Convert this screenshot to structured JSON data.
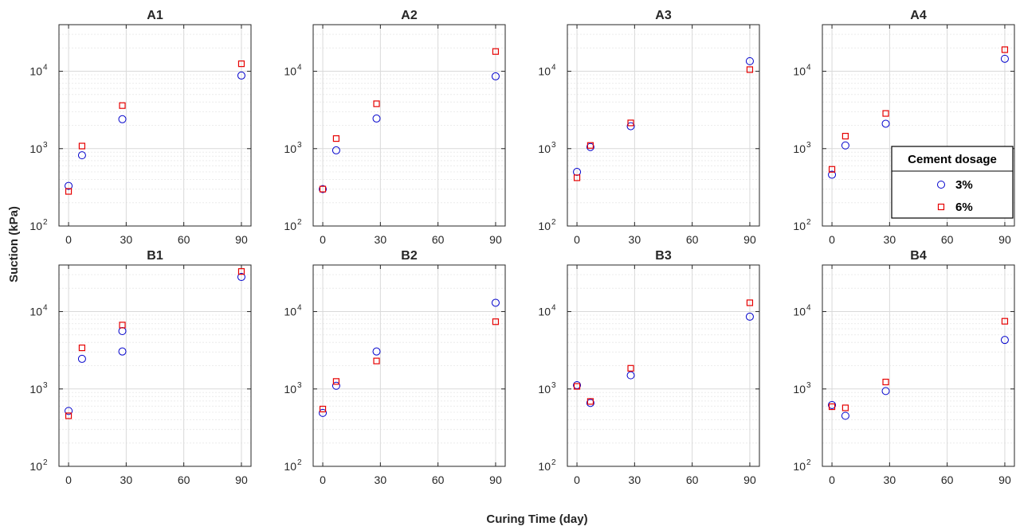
{
  "figure": {
    "xlabel": "Curing Time (day)",
    "ylabel": "Suction (kPa)"
  },
  "legend": {
    "title": "Cement dosage",
    "entries": [
      {
        "label": "3%",
        "marker": "circle",
        "color": "#0000cc"
      },
      {
        "label": "6%",
        "marker": "square",
        "color": "#e60000"
      }
    ],
    "panel": "A4",
    "placement": "lower-right"
  },
  "colors": {
    "series_3pct": "#0000cc",
    "series_6pct": "#e60000",
    "grid": "#d9d9d9",
    "axes": "#262626"
  },
  "chart_data": [
    {
      "type": "scatter",
      "title": "A1",
      "yscale": "log",
      "xlim": [
        -5,
        95
      ],
      "ylim": [
        100,
        40000
      ],
      "xticks": [
        "0",
        "30",
        "60",
        "90"
      ],
      "yticks": [
        "10",
        "10",
        "10"
      ],
      "ytick_exponents": [
        "2",
        "3",
        "4"
      ],
      "grid": true,
      "series": [
        {
          "name": "3%",
          "marker": "circle",
          "points": [
            [
              0,
              330
            ],
            [
              7,
              820
            ],
            [
              28,
              2400
            ],
            [
              90,
              8800
            ]
          ]
        },
        {
          "name": "6%",
          "marker": "square",
          "points": [
            [
              0,
              280
            ],
            [
              7,
              1080
            ],
            [
              28,
              3600
            ],
            [
              90,
              12500
            ]
          ]
        }
      ]
    },
    {
      "type": "scatter",
      "title": "A2",
      "yscale": "log",
      "xlim": [
        -5,
        95
      ],
      "ylim": [
        100,
        40000
      ],
      "xticks": [
        "0",
        "30",
        "60",
        "90"
      ],
      "yticks": [
        "10",
        "10",
        "10"
      ],
      "ytick_exponents": [
        "2",
        "3",
        "4"
      ],
      "grid": true,
      "series": [
        {
          "name": "3%",
          "marker": "circle",
          "points": [
            [
              0,
              300
            ],
            [
              7,
              950
            ],
            [
              28,
              2450
            ],
            [
              90,
              8600
            ]
          ]
        },
        {
          "name": "6%",
          "marker": "square",
          "points": [
            [
              0,
              300
            ],
            [
              7,
              1350
            ],
            [
              28,
              3800
            ],
            [
              90,
              18000
            ]
          ]
        }
      ]
    },
    {
      "type": "scatter",
      "title": "A3",
      "yscale": "log",
      "xlim": [
        -5,
        95
      ],
      "ylim": [
        100,
        40000
      ],
      "xticks": [
        "0",
        "30",
        "60",
        "90"
      ],
      "yticks": [
        "10",
        "10",
        "10"
      ],
      "ytick_exponents": [
        "2",
        "3",
        "4"
      ],
      "grid": true,
      "series": [
        {
          "name": "3%",
          "marker": "circle",
          "points": [
            [
              0,
              500
            ],
            [
              7,
              1050
            ],
            [
              28,
              1950
            ],
            [
              90,
              13500
            ]
          ]
        },
        {
          "name": "6%",
          "marker": "square",
          "points": [
            [
              0,
              420
            ],
            [
              7,
              1100
            ],
            [
              28,
              2150
            ],
            [
              90,
              10500
            ]
          ]
        }
      ]
    },
    {
      "type": "scatter",
      "title": "A4",
      "yscale": "log",
      "xlim": [
        -5,
        95
      ],
      "ylim": [
        100,
        40000
      ],
      "xticks": [
        "0",
        "30",
        "60",
        "90"
      ],
      "yticks": [
        "10",
        "10",
        "10"
      ],
      "ytick_exponents": [
        "2",
        "3",
        "4"
      ],
      "grid": true,
      "series": [
        {
          "name": "3%",
          "marker": "circle",
          "points": [
            [
              0,
              460
            ],
            [
              7,
              1100
            ],
            [
              28,
              2100
            ],
            [
              90,
              14500
            ]
          ]
        },
        {
          "name": "6%",
          "marker": "square",
          "points": [
            [
              0,
              540
            ],
            [
              7,
              1450
            ],
            [
              28,
              2850
            ],
            [
              90,
              19000
            ]
          ]
        }
      ]
    },
    {
      "type": "scatter",
      "title": "B1",
      "yscale": "log",
      "xlim": [
        -5,
        95
      ],
      "ylim": [
        100,
        40000
      ],
      "xticks": [
        "0",
        "30",
        "60",
        "90"
      ],
      "yticks": [
        "10",
        "10",
        "10"
      ],
      "ytick_exponents": [
        "2",
        "3",
        "4"
      ],
      "grid": true,
      "series": [
        {
          "name": "3%",
          "marker": "circle",
          "points": [
            [
              0,
              520
            ],
            [
              7,
              2450
            ],
            [
              28,
              3050
            ],
            [
              28,
              5600
            ],
            [
              90,
              28000
            ]
          ]
        },
        {
          "name": "6%",
          "marker": "square",
          "points": [
            [
              0,
              450
            ],
            [
              7,
              3400
            ],
            [
              28,
              6700
            ],
            [
              90,
              33000
            ]
          ]
        }
      ]
    },
    {
      "type": "scatter",
      "title": "B2",
      "yscale": "log",
      "xlim": [
        -5,
        95
      ],
      "ylim": [
        100,
        40000
      ],
      "xticks": [
        "0",
        "30",
        "60",
        "90"
      ],
      "yticks": [
        "10",
        "10",
        "10"
      ],
      "ytick_exponents": [
        "2",
        "3",
        "4"
      ],
      "grid": true,
      "series": [
        {
          "name": "3%",
          "marker": "circle",
          "points": [
            [
              0,
              490
            ],
            [
              7,
              1100
            ],
            [
              28,
              3050
            ],
            [
              90,
              13000
            ]
          ]
        },
        {
          "name": "6%",
          "marker": "square",
          "points": [
            [
              0,
              550
            ],
            [
              7,
              1250
            ],
            [
              28,
              2300
            ],
            [
              90,
              7400
            ]
          ]
        }
      ]
    },
    {
      "type": "scatter",
      "title": "B3",
      "yscale": "log",
      "xlim": [
        -5,
        95
      ],
      "ylim": [
        100,
        40000
      ],
      "xticks": [
        "0",
        "30",
        "60",
        "90"
      ],
      "yticks": [
        "10",
        "10",
        "10"
      ],
      "ytick_exponents": [
        "2",
        "3",
        "4"
      ],
      "grid": true,
      "series": [
        {
          "name": "3%",
          "marker": "circle",
          "points": [
            [
              0,
              1120
            ],
            [
              7,
              660
            ],
            [
              28,
              1500
            ],
            [
              90,
              8600
            ]
          ]
        },
        {
          "name": "6%",
          "marker": "square",
          "points": [
            [
              0,
              1080
            ],
            [
              7,
              690
            ],
            [
              28,
              1850
            ],
            [
              90,
              13000
            ]
          ]
        }
      ]
    },
    {
      "type": "scatter",
      "title": "B4",
      "yscale": "log",
      "xlim": [
        -5,
        95
      ],
      "ylim": [
        100,
        40000
      ],
      "xticks": [
        "0",
        "30",
        "60",
        "90"
      ],
      "yticks": [
        "10",
        "10",
        "10"
      ],
      "ytick_exponents": [
        "2",
        "3",
        "4"
      ],
      "grid": true,
      "series": [
        {
          "name": "3%",
          "marker": "circle",
          "points": [
            [
              0,
              620
            ],
            [
              7,
              450
            ],
            [
              28,
              940
            ],
            [
              90,
              4300
            ]
          ]
        },
        {
          "name": "6%",
          "marker": "square",
          "points": [
            [
              0,
              590
            ],
            [
              7,
              570
            ],
            [
              28,
              1230
            ],
            [
              90,
              7500
            ]
          ]
        }
      ]
    }
  ]
}
